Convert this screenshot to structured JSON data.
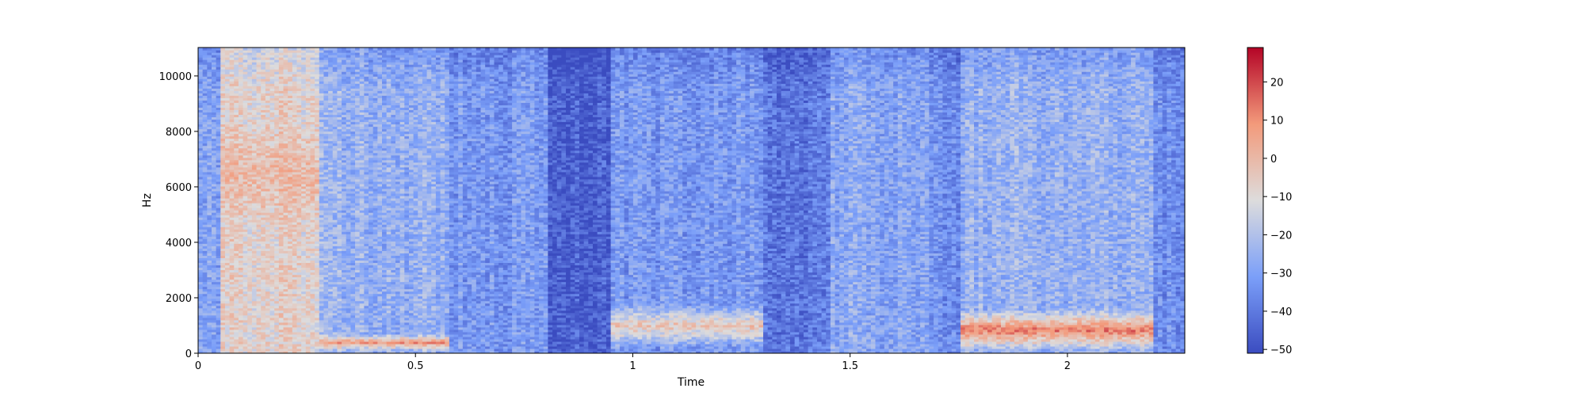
{
  "chart_data": {
    "type": "heatmap",
    "subtype": "spectrogram",
    "title": "",
    "xlabel": "Time",
    "ylabel": "Hz",
    "xlim": [
      0,
      2.27
    ],
    "ylim": [
      0,
      11025
    ],
    "xticks": [
      {
        "value": 0,
        "label": "0"
      },
      {
        "value": 0.5,
        "label": "0.5"
      },
      {
        "value": 1,
        "label": "1"
      },
      {
        "value": 1.5,
        "label": "1.5"
      },
      {
        "value": 2,
        "label": "2"
      }
    ],
    "yticks": [
      {
        "value": 0,
        "label": "0"
      },
      {
        "value": 2000,
        "label": "2000"
      },
      {
        "value": 4000,
        "label": "4000"
      },
      {
        "value": 6000,
        "label": "6000"
      },
      {
        "value": 8000,
        "label": "8000"
      },
      {
        "value": 10000,
        "label": "10000"
      }
    ],
    "colorbar": {
      "colormap": "coolwarm",
      "range": [
        -51,
        29
      ],
      "ticks": [
        {
          "value": 20,
          "label": "20"
        },
        {
          "value": 10,
          "label": "10"
        },
        {
          "value": 0,
          "label": "0"
        },
        {
          "value": -10,
          "label": "−10"
        },
        {
          "value": -20,
          "label": "−20"
        },
        {
          "value": -30,
          "label": "−30"
        },
        {
          "value": -40,
          "label": "−40"
        },
        {
          "value": -50,
          "label": "−50"
        }
      ]
    },
    "grid": false,
    "time_segments": [
      {
        "start": 0.0,
        "end": 0.05,
        "level": -30
      },
      {
        "start": 0.05,
        "end": 0.28,
        "level": -8,
        "peak_band_hz": [
          4500,
          8500
        ],
        "peak_db": 2
      },
      {
        "start": 0.28,
        "end": 0.58,
        "level": -25,
        "peak_band_hz": [
          100,
          700
        ],
        "peak_db": 15
      },
      {
        "start": 0.58,
        "end": 0.8,
        "level": -32
      },
      {
        "start": 0.8,
        "end": 0.95,
        "level": -46
      },
      {
        "start": 0.95,
        "end": 1.3,
        "level": -32,
        "peak_band_hz": [
          200,
          1800
        ],
        "peak_db": 2
      },
      {
        "start": 1.3,
        "end": 1.45,
        "level": -40
      },
      {
        "start": 1.45,
        "end": 1.68,
        "level": -28
      },
      {
        "start": 1.68,
        "end": 1.75,
        "level": -35
      },
      {
        "start": 1.75,
        "end": 2.2,
        "level": -25,
        "peak_band_hz": [
          100,
          1600
        ],
        "peak_db": 20
      },
      {
        "start": 2.2,
        "end": 2.27,
        "level": -35
      }
    ]
  }
}
